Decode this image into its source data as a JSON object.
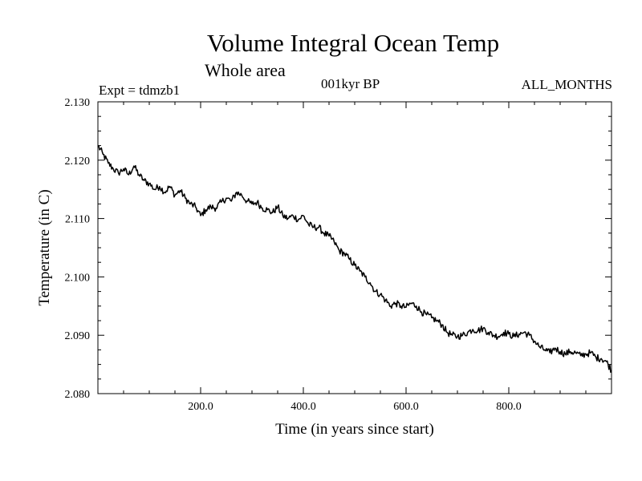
{
  "chart_data": {
    "type": "line",
    "title": "Volume Integral Ocean Temp",
    "subtitle": "Whole area",
    "annotations": {
      "experiment": "Expt = tdmzb1",
      "period": "001kyr BP",
      "months": "ALL_MONTHS"
    },
    "xlabel": "Time (in years since start)",
    "ylabel": "Temperature (in C)",
    "xlim": [
      0,
      1000
    ],
    "ylim": [
      2.08,
      2.13
    ],
    "x_ticks": [
      200,
      400,
      600,
      800
    ],
    "x_tick_labels": [
      "200.0",
      "400.0",
      "600.0",
      "800.0"
    ],
    "y_ticks": [
      2.08,
      2.09,
      2.1,
      2.11,
      2.12,
      2.13
    ],
    "y_tick_labels": [
      "2.080",
      "2.090",
      "2.100",
      "2.110",
      "2.120",
      "2.130"
    ],
    "grid": false,
    "series": [
      {
        "name": "Volume integral ocean temperature",
        "x": [
          0,
          10,
          20,
          30,
          40,
          50,
          60,
          70,
          80,
          90,
          100,
          110,
          120,
          130,
          140,
          150,
          160,
          170,
          180,
          190,
          200,
          210,
          220,
          230,
          240,
          250,
          260,
          270,
          280,
          290,
          300,
          310,
          320,
          330,
          340,
          350,
          360,
          370,
          380,
          390,
          400,
          410,
          420,
          430,
          440,
          450,
          460,
          470,
          480,
          490,
          500,
          510,
          520,
          530,
          540,
          550,
          560,
          570,
          580,
          590,
          600,
          610,
          620,
          630,
          640,
          650,
          660,
          670,
          680,
          690,
          700,
          710,
          720,
          730,
          740,
          750,
          760,
          770,
          780,
          790,
          800,
          810,
          820,
          830,
          840,
          850,
          860,
          870,
          880,
          890,
          900,
          910,
          920,
          930,
          940,
          950,
          960,
          970,
          980,
          990,
          1000
        ],
        "values": [
          2.1225,
          2.121,
          2.1195,
          2.1185,
          2.1178,
          2.1185,
          2.1175,
          2.119,
          2.1175,
          2.1165,
          2.116,
          2.115,
          2.1155,
          2.1145,
          2.1155,
          2.114,
          2.1148,
          2.1135,
          2.1125,
          2.112,
          2.1105,
          2.1115,
          2.112,
          2.1118,
          2.1128,
          2.1135,
          2.113,
          2.1145,
          2.114,
          2.113,
          2.1125,
          2.1128,
          2.1118,
          2.1115,
          2.111,
          2.112,
          2.1105,
          2.11,
          2.1105,
          2.1098,
          2.1105,
          2.109,
          2.1085,
          2.1085,
          2.1075,
          2.107,
          2.106,
          2.1045,
          2.104,
          2.103,
          2.102,
          2.101,
          2.1,
          2.099,
          2.0975,
          2.097,
          2.096,
          2.095,
          2.0955,
          2.095,
          2.0948,
          2.0955,
          2.095,
          2.094,
          2.0935,
          2.093,
          2.0925,
          2.0918,
          2.0905,
          2.09,
          2.0898,
          2.09,
          2.0905,
          2.091,
          2.0908,
          2.0912,
          2.0905,
          2.09,
          2.0898,
          2.0905,
          2.0902,
          2.0898,
          2.0902,
          2.0905,
          2.09,
          2.089,
          2.088,
          2.0875,
          2.087,
          2.0878,
          2.0872,
          2.0868,
          2.0872,
          2.087,
          2.0865,
          2.0868,
          2.087,
          2.0862,
          2.086,
          2.0855,
          2.084
        ]
      }
    ]
  }
}
